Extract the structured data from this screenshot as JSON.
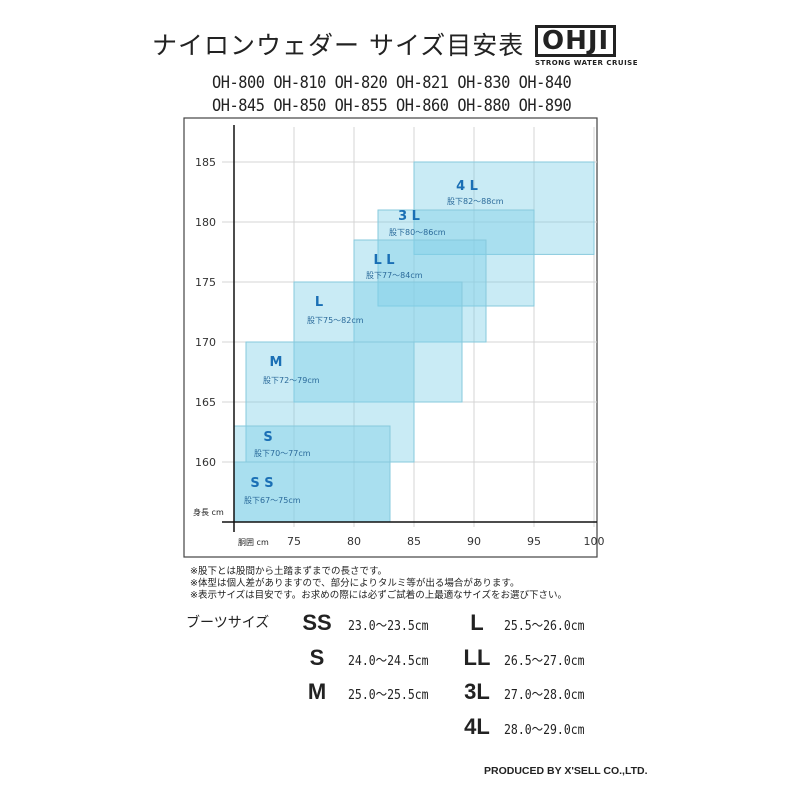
{
  "header": {
    "title": "ナイロンウェダー サイズ目安表",
    "logo_text": "OHJI",
    "logo_tagline": "STRONG WATER CRUISE",
    "models_line1": "OH-800 OH-810 OH-820 OH-821 OH-830 OH-840",
    "models_line2": "OH-845 OH-850 OH-855 OH-860 OH-880 OH-890"
  },
  "chart_data": {
    "type": "range-rectangles",
    "xlabel": "胴囲 cm",
    "ylabel": "身長 cm",
    "xlim": [
      70,
      100
    ],
    "ylim": [
      155,
      187
    ],
    "x_ticks": [
      75,
      80,
      85,
      90,
      95,
      100
    ],
    "y_ticks": [
      160,
      165,
      170,
      175,
      180,
      185
    ],
    "grid": true,
    "fill_color": "#7fd0e6",
    "label_color": "#1a6fb5",
    "sizes": [
      {
        "name": "S S",
        "inseam": "股下67～75cm",
        "waist": [
          70,
          83
        ],
        "height": [
          155,
          160
        ]
      },
      {
        "name": "S",
        "inseam": "股下70～77cm",
        "waist": [
          70,
          83
        ],
        "height": [
          155,
          163
        ]
      },
      {
        "name": "M",
        "inseam": "股下72～79cm",
        "waist": [
          71,
          85
        ],
        "height": [
          160,
          170
        ]
      },
      {
        "name": "L",
        "inseam": "股下75～82cm",
        "waist": [
          75,
          89
        ],
        "height": [
          165,
          175
        ]
      },
      {
        "name": "L L",
        "inseam": "股下77～84cm",
        "waist": [
          80,
          91
        ],
        "height": [
          170,
          178.5
        ]
      },
      {
        "name": "3 L",
        "inseam": "股下80～86cm",
        "waist": [
          82,
          95
        ],
        "height": [
          173,
          181
        ]
      },
      {
        "name": "4 L",
        "inseam": "股下82～88cm",
        "waist": [
          85,
          100
        ],
        "height": [
          177.3,
          185
        ]
      }
    ]
  },
  "notes": [
    "※股下とは股間から土踏まずまでの長さです。",
    "※体型は個人差がありますので、部分によりタルミ等が出る場合があります。",
    "※表示サイズは目安です。お求めの際には必ずご試着の上最適なサイズをお選び下さい。"
  ],
  "boots": {
    "heading": "ブーツサイズ",
    "left": [
      {
        "size": "SS",
        "range": "23.0～23.5cm"
      },
      {
        "size": "S",
        "range": "24.0～24.5cm"
      },
      {
        "size": "M",
        "range": "25.0～25.5cm"
      }
    ],
    "right": [
      {
        "size": "L",
        "range": "25.5～26.0cm"
      },
      {
        "size": "LL",
        "range": "26.5～27.0cm"
      },
      {
        "size": "3L",
        "range": "27.0～28.0cm"
      },
      {
        "size": "4L",
        "range": "28.0～29.0cm"
      }
    ]
  },
  "footer": {
    "produced_by": "PRODUCED BY X'SELL CO.,LTD."
  }
}
